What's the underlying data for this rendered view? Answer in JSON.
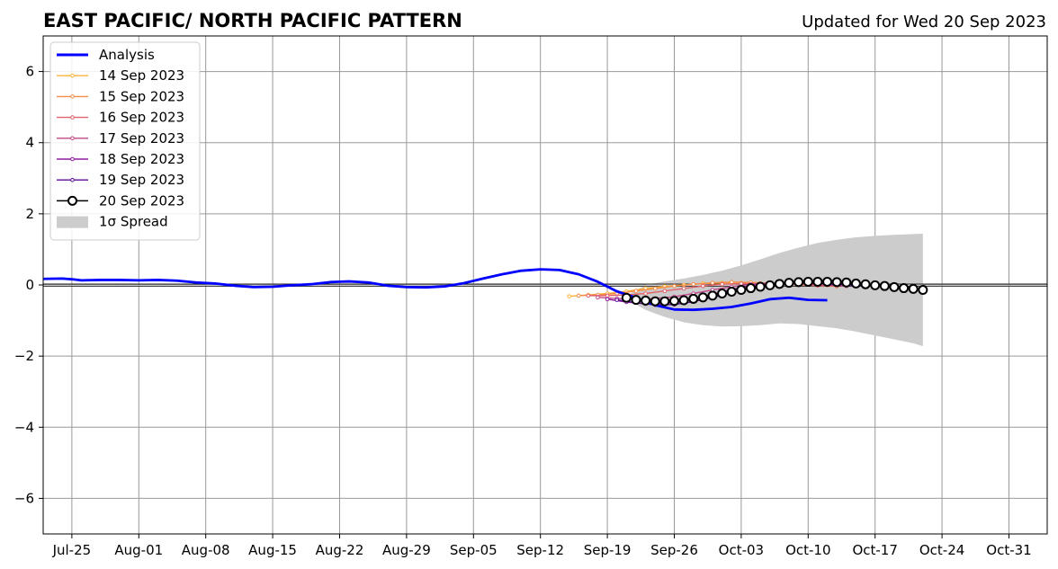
{
  "title": "EAST PACIFIC/ NORTH PACIFIC PATTERN",
  "updated": "Updated for Wed 20 Sep 2023",
  "legend": [
    {
      "label": "Analysis",
      "color": "#0000ff",
      "kind": "line-thick"
    },
    {
      "label": "14 Sep 2023",
      "color": "#fbb33a",
      "kind": "line-dot"
    },
    {
      "label": "15 Sep 2023",
      "color": "#f58c48",
      "kind": "line-dot"
    },
    {
      "label": "16 Sep 2023",
      "color": "#e1626a",
      "kind": "line-dot"
    },
    {
      "label": "17 Sep 2023",
      "color": "#c0488b",
      "kind": "line-dot"
    },
    {
      "label": "18 Sep 2023",
      "color": "#8f1ca0",
      "kind": "line-dot"
    },
    {
      "label": "19 Sep 2023",
      "color": "#5c0a98",
      "kind": "line-dot"
    },
    {
      "label": "20 Sep 2023",
      "color": "#000000",
      "kind": "line-circle"
    },
    {
      "label": "1σ Spread",
      "color": "#cccccc",
      "kind": "patch"
    }
  ],
  "chart_data": {
    "type": "line",
    "title": "EAST PACIFIC/ NORTH PACIFIC PATTERN",
    "xlabel": "",
    "ylabel": "",
    "x_unit": "days since Jul 25",
    "xlim": [
      -3,
      102
    ],
    "ylim": [
      -7,
      7
    ],
    "x_ticks": [
      0,
      7,
      14,
      21,
      28,
      35,
      42,
      49,
      56,
      63,
      70,
      77,
      84,
      91,
      98
    ],
    "x_tick_labels": [
      "Jul-25",
      "Aug-01",
      "Aug-08",
      "Aug-15",
      "Aug-22",
      "Aug-29",
      "Sep-05",
      "Sep-12",
      "Sep-19",
      "Sep-26",
      "Oct-03",
      "Oct-10",
      "Oct-17",
      "Oct-24",
      "Oct-31"
    ],
    "y_ticks": [
      -6,
      -4,
      -2,
      0,
      2,
      4,
      6
    ],
    "y_tick_labels": [
      "−6",
      "−4",
      "−2",
      "0",
      "2",
      "4",
      "6"
    ],
    "grid": true,
    "zero_line": 0,
    "legend_position": "top-left",
    "analysis": {
      "name": "Analysis",
      "color": "#0000ff",
      "points": [
        [
          -3,
          0.17
        ],
        [
          -1,
          0.18
        ],
        [
          0,
          0.16
        ],
        [
          1,
          0.13
        ],
        [
          3,
          0.14
        ],
        [
          5,
          0.14
        ],
        [
          7,
          0.13
        ],
        [
          9,
          0.14
        ],
        [
          11,
          0.12
        ],
        [
          13,
          0.07
        ],
        [
          15,
          0.04
        ],
        [
          17,
          -0.02
        ],
        [
          19,
          -0.06
        ],
        [
          21,
          -0.05
        ],
        [
          23,
          -0.01
        ],
        [
          25,
          0.02
        ],
        [
          27,
          0.08
        ],
        [
          29,
          0.1
        ],
        [
          31,
          0.07
        ],
        [
          33,
          -0.02
        ],
        [
          35,
          -0.06
        ],
        [
          37,
          -0.07
        ],
        [
          39,
          -0.04
        ],
        [
          41,
          0.05
        ],
        [
          43,
          0.18
        ],
        [
          45,
          0.3
        ],
        [
          47,
          0.4
        ],
        [
          49,
          0.44
        ],
        [
          51,
          0.42
        ],
        [
          53,
          0.3
        ],
        [
          55,
          0.09
        ],
        [
          57,
          -0.18
        ],
        [
          59,
          -0.36
        ],
        [
          61,
          -0.57
        ],
        [
          63,
          -0.69
        ],
        [
          65,
          -0.7
        ],
        [
          67,
          -0.67
        ],
        [
          69,
          -0.62
        ],
        [
          71,
          -0.52
        ],
        [
          73,
          -0.4
        ],
        [
          75,
          -0.36
        ],
        [
          77,
          -0.42
        ],
        [
          79,
          -0.43
        ]
      ]
    },
    "forecasts": [
      {
        "name": "14 Sep 2023",
        "color": "#fbb33a",
        "points": [
          [
            52,
            -0.32
          ],
          [
            54,
            -0.28
          ],
          [
            56,
            -0.24
          ],
          [
            58,
            -0.18
          ],
          [
            60,
            -0.1
          ],
          [
            62,
            -0.04
          ],
          [
            64,
            0.0
          ],
          [
            66,
            0.04
          ],
          [
            68,
            0.06
          ],
          [
            70,
            0.06
          ],
          [
            72,
            0.05
          ],
          [
            74,
            0.03
          ],
          [
            76,
            0.0
          ],
          [
            78,
            -0.02
          ],
          [
            80,
            -0.04
          ]
        ]
      },
      {
        "name": "15 Sep 2023",
        "color": "#f58c48",
        "points": [
          [
            53,
            -0.3
          ],
          [
            55,
            -0.28
          ],
          [
            57,
            -0.24
          ],
          [
            59,
            -0.17
          ],
          [
            61,
            -0.1
          ],
          [
            63,
            -0.03
          ],
          [
            65,
            0.02
          ],
          [
            67,
            0.06
          ],
          [
            69,
            0.08
          ],
          [
            71,
            0.07
          ],
          [
            73,
            0.05
          ],
          [
            75,
            0.03
          ],
          [
            77,
            0.01
          ],
          [
            79,
            -0.01
          ],
          [
            81,
            -0.03
          ]
        ]
      },
      {
        "name": "16 Sep 2023",
        "color": "#e1626a",
        "points": [
          [
            54,
            -0.3
          ],
          [
            56,
            -0.3
          ],
          [
            58,
            -0.28
          ],
          [
            60,
            -0.24
          ],
          [
            62,
            -0.17
          ],
          [
            64,
            -0.1
          ],
          [
            66,
            -0.03
          ],
          [
            68,
            0.02
          ],
          [
            70,
            0.04
          ],
          [
            72,
            0.04
          ],
          [
            74,
            0.03
          ],
          [
            76,
            0.01
          ],
          [
            78,
            -0.02
          ],
          [
            80,
            -0.03
          ]
        ]
      },
      {
        "name": "17 Sep 2023",
        "color": "#c0488b",
        "points": [
          [
            55,
            -0.35
          ],
          [
            57,
            -0.38
          ],
          [
            59,
            -0.4
          ],
          [
            61,
            -0.38
          ],
          [
            63,
            -0.33
          ],
          [
            65,
            -0.24
          ],
          [
            67,
            -0.14
          ],
          [
            69,
            -0.05
          ],
          [
            71,
            0.02
          ],
          [
            73,
            0.05
          ],
          [
            75,
            0.05
          ],
          [
            77,
            0.03
          ],
          [
            79,
            0.0
          ],
          [
            81,
            -0.03
          ]
        ]
      },
      {
        "name": "18 Sep 2023",
        "color": "#8f1ca0",
        "points": [
          [
            56,
            -0.4
          ],
          [
            58,
            -0.48
          ],
          [
            60,
            -0.53
          ],
          [
            62,
            -0.52
          ],
          [
            64,
            -0.44
          ],
          [
            66,
            -0.32
          ],
          [
            68,
            -0.19
          ],
          [
            70,
            -0.07
          ],
          [
            72,
            0.02
          ],
          [
            74,
            0.06
          ],
          [
            76,
            0.06
          ],
          [
            78,
            0.04
          ],
          [
            80,
            0.01
          ],
          [
            82,
            -0.03
          ]
        ]
      },
      {
        "name": "19 Sep 2023",
        "color": "#5c0a98",
        "points": [
          [
            57,
            -0.42
          ],
          [
            59,
            -0.5
          ],
          [
            61,
            -0.56
          ],
          [
            63,
            -0.55
          ],
          [
            65,
            -0.47
          ],
          [
            67,
            -0.35
          ],
          [
            69,
            -0.22
          ],
          [
            71,
            -0.1
          ],
          [
            73,
            0.0
          ],
          [
            75,
            0.05
          ],
          [
            77,
            0.06
          ],
          [
            79,
            0.04
          ],
          [
            81,
            0.01
          ],
          [
            83,
            -0.03
          ]
        ]
      },
      {
        "name": "20 Sep 2023",
        "color": "#000000",
        "points": [
          [
            58,
            -0.36
          ],
          [
            59,
            -0.42
          ],
          [
            60,
            -0.44
          ],
          [
            61,
            -0.46
          ],
          [
            62,
            -0.46
          ],
          [
            63,
            -0.45
          ],
          [
            64,
            -0.43
          ],
          [
            65,
            -0.39
          ],
          [
            66,
            -0.35
          ],
          [
            67,
            -0.3
          ],
          [
            68,
            -0.24
          ],
          [
            69,
            -0.19
          ],
          [
            70,
            -0.14
          ],
          [
            71,
            -0.09
          ],
          [
            72,
            -0.05
          ],
          [
            73,
            -0.01
          ],
          [
            74,
            0.03
          ],
          [
            75,
            0.06
          ],
          [
            76,
            0.08
          ],
          [
            77,
            0.09
          ],
          [
            78,
            0.09
          ],
          [
            79,
            0.09
          ],
          [
            80,
            0.08
          ],
          [
            81,
            0.07
          ],
          [
            82,
            0.04
          ],
          [
            83,
            0.02
          ],
          [
            84,
            -0.01
          ],
          [
            85,
            -0.03
          ],
          [
            86,
            -0.06
          ],
          [
            87,
            -0.09
          ],
          [
            88,
            -0.11
          ],
          [
            89,
            -0.14
          ]
        ]
      }
    ],
    "spread": {
      "name": "1σ Spread",
      "color": "#cccccc",
      "upper": [
        [
          58,
          -0.3
        ],
        [
          60,
          0.0
        ],
        [
          62,
          0.1
        ],
        [
          64,
          0.18
        ],
        [
          66,
          0.28
        ],
        [
          68,
          0.4
        ],
        [
          70,
          0.55
        ],
        [
          72,
          0.72
        ],
        [
          74,
          0.9
        ],
        [
          76,
          1.05
        ],
        [
          78,
          1.18
        ],
        [
          80,
          1.27
        ],
        [
          82,
          1.34
        ],
        [
          84,
          1.38
        ],
        [
          86,
          1.41
        ],
        [
          88,
          1.43
        ],
        [
          89,
          1.44
        ]
      ],
      "lower": [
        [
          58,
          -0.4
        ],
        [
          60,
          -0.7
        ],
        [
          62,
          -0.9
        ],
        [
          64,
          -1.05
        ],
        [
          66,
          -1.13
        ],
        [
          68,
          -1.17
        ],
        [
          70,
          -1.16
        ],
        [
          72,
          -1.13
        ],
        [
          74,
          -1.08
        ],
        [
          76,
          -1.1
        ],
        [
          78,
          -1.16
        ],
        [
          80,
          -1.22
        ],
        [
          82,
          -1.31
        ],
        [
          84,
          -1.42
        ],
        [
          86,
          -1.53
        ],
        [
          88,
          -1.64
        ],
        [
          89,
          -1.72
        ]
      ]
    }
  }
}
